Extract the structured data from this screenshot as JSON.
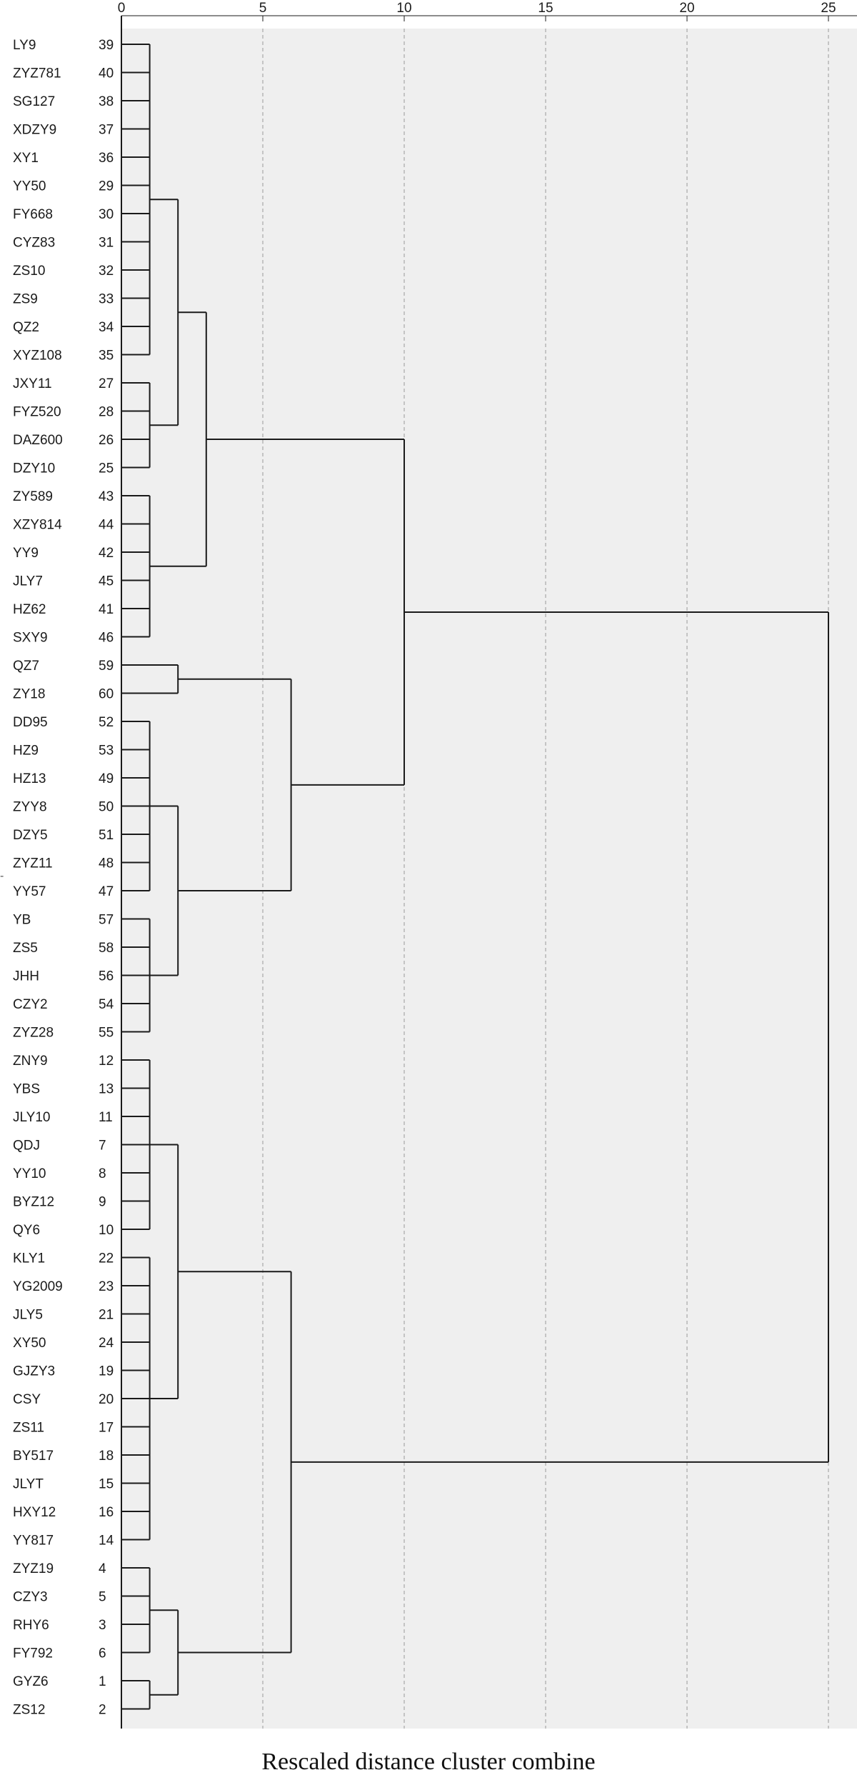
{
  "chart_data": {
    "type": "dendrogram",
    "xlabel": "Rescaled distance cluster combine",
    "xlim": [
      0,
      25
    ],
    "x_ticks": [
      0,
      5,
      10,
      15,
      20,
      25
    ],
    "grid": true,
    "leaves": [
      {
        "label": "LY9",
        "id": "39"
      },
      {
        "label": "ZYZ781",
        "id": "40"
      },
      {
        "label": "SG127",
        "id": "38"
      },
      {
        "label": "XDZY9",
        "id": "37"
      },
      {
        "label": "XY1",
        "id": "36"
      },
      {
        "label": "YY50",
        "id": "29"
      },
      {
        "label": "FY668",
        "id": "30"
      },
      {
        "label": "CYZ83",
        "id": "31"
      },
      {
        "label": "ZS10",
        "id": "32"
      },
      {
        "label": "ZS9",
        "id": "33"
      },
      {
        "label": "QZ2",
        "id": "34"
      },
      {
        "label": "XYZ108",
        "id": "35"
      },
      {
        "label": "JXY11",
        "id": "27"
      },
      {
        "label": "FYZ520",
        "id": "28"
      },
      {
        "label": "DAZ600",
        "id": "26"
      },
      {
        "label": "DZY10",
        "id": "25"
      },
      {
        "label": "ZY589",
        "id": "43"
      },
      {
        "label": "XZY814",
        "id": "44"
      },
      {
        "label": "YY9",
        "id": "42"
      },
      {
        "label": "JLY7",
        "id": "45"
      },
      {
        "label": "HZ62",
        "id": "41"
      },
      {
        "label": "SXY9",
        "id": "46"
      },
      {
        "label": "QZ7",
        "id": "59"
      },
      {
        "label": "ZY18",
        "id": "60"
      },
      {
        "label": "DD95",
        "id": "52"
      },
      {
        "label": "HZ9",
        "id": "53"
      },
      {
        "label": "HZ13",
        "id": "49"
      },
      {
        "label": "ZYY8",
        "id": "50"
      },
      {
        "label": "DZY5",
        "id": "51"
      },
      {
        "label": "ZYZ11",
        "id": "48"
      },
      {
        "label": "YY57",
        "id": "47"
      },
      {
        "label": "YB",
        "id": "57"
      },
      {
        "label": "ZS5",
        "id": "58"
      },
      {
        "label": "JHH",
        "id": "56"
      },
      {
        "label": "CZY2",
        "id": "54"
      },
      {
        "label": "ZYZ28",
        "id": "55"
      },
      {
        "label": "ZNY9",
        "id": "12"
      },
      {
        "label": "YBS",
        "id": "13"
      },
      {
        "label": "JLY10",
        "id": "11"
      },
      {
        "label": "QDJ",
        "id": "7"
      },
      {
        "label": "YY10",
        "id": "8"
      },
      {
        "label": "BYZ12",
        "id": "9"
      },
      {
        "label": "QY6",
        "id": "10"
      },
      {
        "label": "KLY1",
        "id": "22"
      },
      {
        "label": "YG2009",
        "id": "23"
      },
      {
        "label": "JLY5",
        "id": "21"
      },
      {
        "label": "XY50",
        "id": "24"
      },
      {
        "label": "GJZY3",
        "id": "19"
      },
      {
        "label": "CSY",
        "id": "20"
      },
      {
        "label": "ZS11",
        "id": "17"
      },
      {
        "label": "BY517",
        "id": "18"
      },
      {
        "label": "JLYT",
        "id": "15"
      },
      {
        "label": "HXY12",
        "id": "16"
      },
      {
        "label": "YY817",
        "id": "14"
      },
      {
        "label": "ZYZ19",
        "id": "4"
      },
      {
        "label": "CZY3",
        "id": "5"
      },
      {
        "label": "RHY6",
        "id": "3"
      },
      {
        "label": "FY792",
        "id": "6"
      },
      {
        "label": "GYZ6",
        "id": "1"
      },
      {
        "label": "ZS12",
        "id": "2"
      }
    ],
    "clusters": [
      {
        "name": "c1",
        "children": [
          0,
          1,
          2,
          3,
          4,
          5,
          6,
          7,
          8,
          9,
          10,
          11
        ],
        "distance": 1
      },
      {
        "name": "c2",
        "children": [
          12,
          13,
          14,
          15
        ],
        "distance": 1
      },
      {
        "name": "c3",
        "children": [
          "c1",
          "c2"
        ],
        "distance": 2
      },
      {
        "name": "c4",
        "children": [
          16,
          17,
          18,
          19,
          20,
          21
        ],
        "distance": 1
      },
      {
        "name": "c5",
        "children": [
          "c3",
          "c4"
        ],
        "distance": 3
      },
      {
        "name": "c6",
        "children": [
          22,
          23
        ],
        "distance": 2
      },
      {
        "name": "c7",
        "children": [
          24,
          25,
          26,
          27,
          28,
          29,
          30
        ],
        "distance": 1
      },
      {
        "name": "c8",
        "children": [
          31,
          32,
          33,
          34,
          35
        ],
        "distance": 1
      },
      {
        "name": "c9",
        "children": [
          "c7",
          "c8"
        ],
        "distance": 2
      },
      {
        "name": "c10",
        "children": [
          "c6",
          "c9"
        ],
        "distance": 6
      },
      {
        "name": "c11",
        "children": [
          "c5",
          "c10"
        ],
        "distance": 10
      },
      {
        "name": "c12",
        "children": [
          36,
          37,
          38,
          39,
          40,
          41,
          42
        ],
        "distance": 1
      },
      {
        "name": "c13",
        "children": [
          43,
          44,
          45,
          46,
          47,
          48,
          49,
          50,
          51,
          52,
          53
        ],
        "distance": 1
      },
      {
        "name": "c14",
        "children": [
          "c12",
          "c13"
        ],
        "distance": 2
      },
      {
        "name": "c15",
        "children": [
          54,
          55,
          56,
          57
        ],
        "distance": 1
      },
      {
        "name": "c16",
        "children": [
          58,
          59
        ],
        "distance": 1
      },
      {
        "name": "c17",
        "children": [
          "c15",
          "c16"
        ],
        "distance": 2
      },
      {
        "name": "c18",
        "children": [
          "c14",
          "c17"
        ],
        "distance": 6
      },
      {
        "name": "c19",
        "children": [
          "c11",
          "c18"
        ],
        "distance": 25
      }
    ],
    "colors": {
      "plot_background": "#efefef",
      "lines": "#1a1a1a",
      "grid": "#b5b5b5"
    }
  },
  "stray_mark": "-"
}
